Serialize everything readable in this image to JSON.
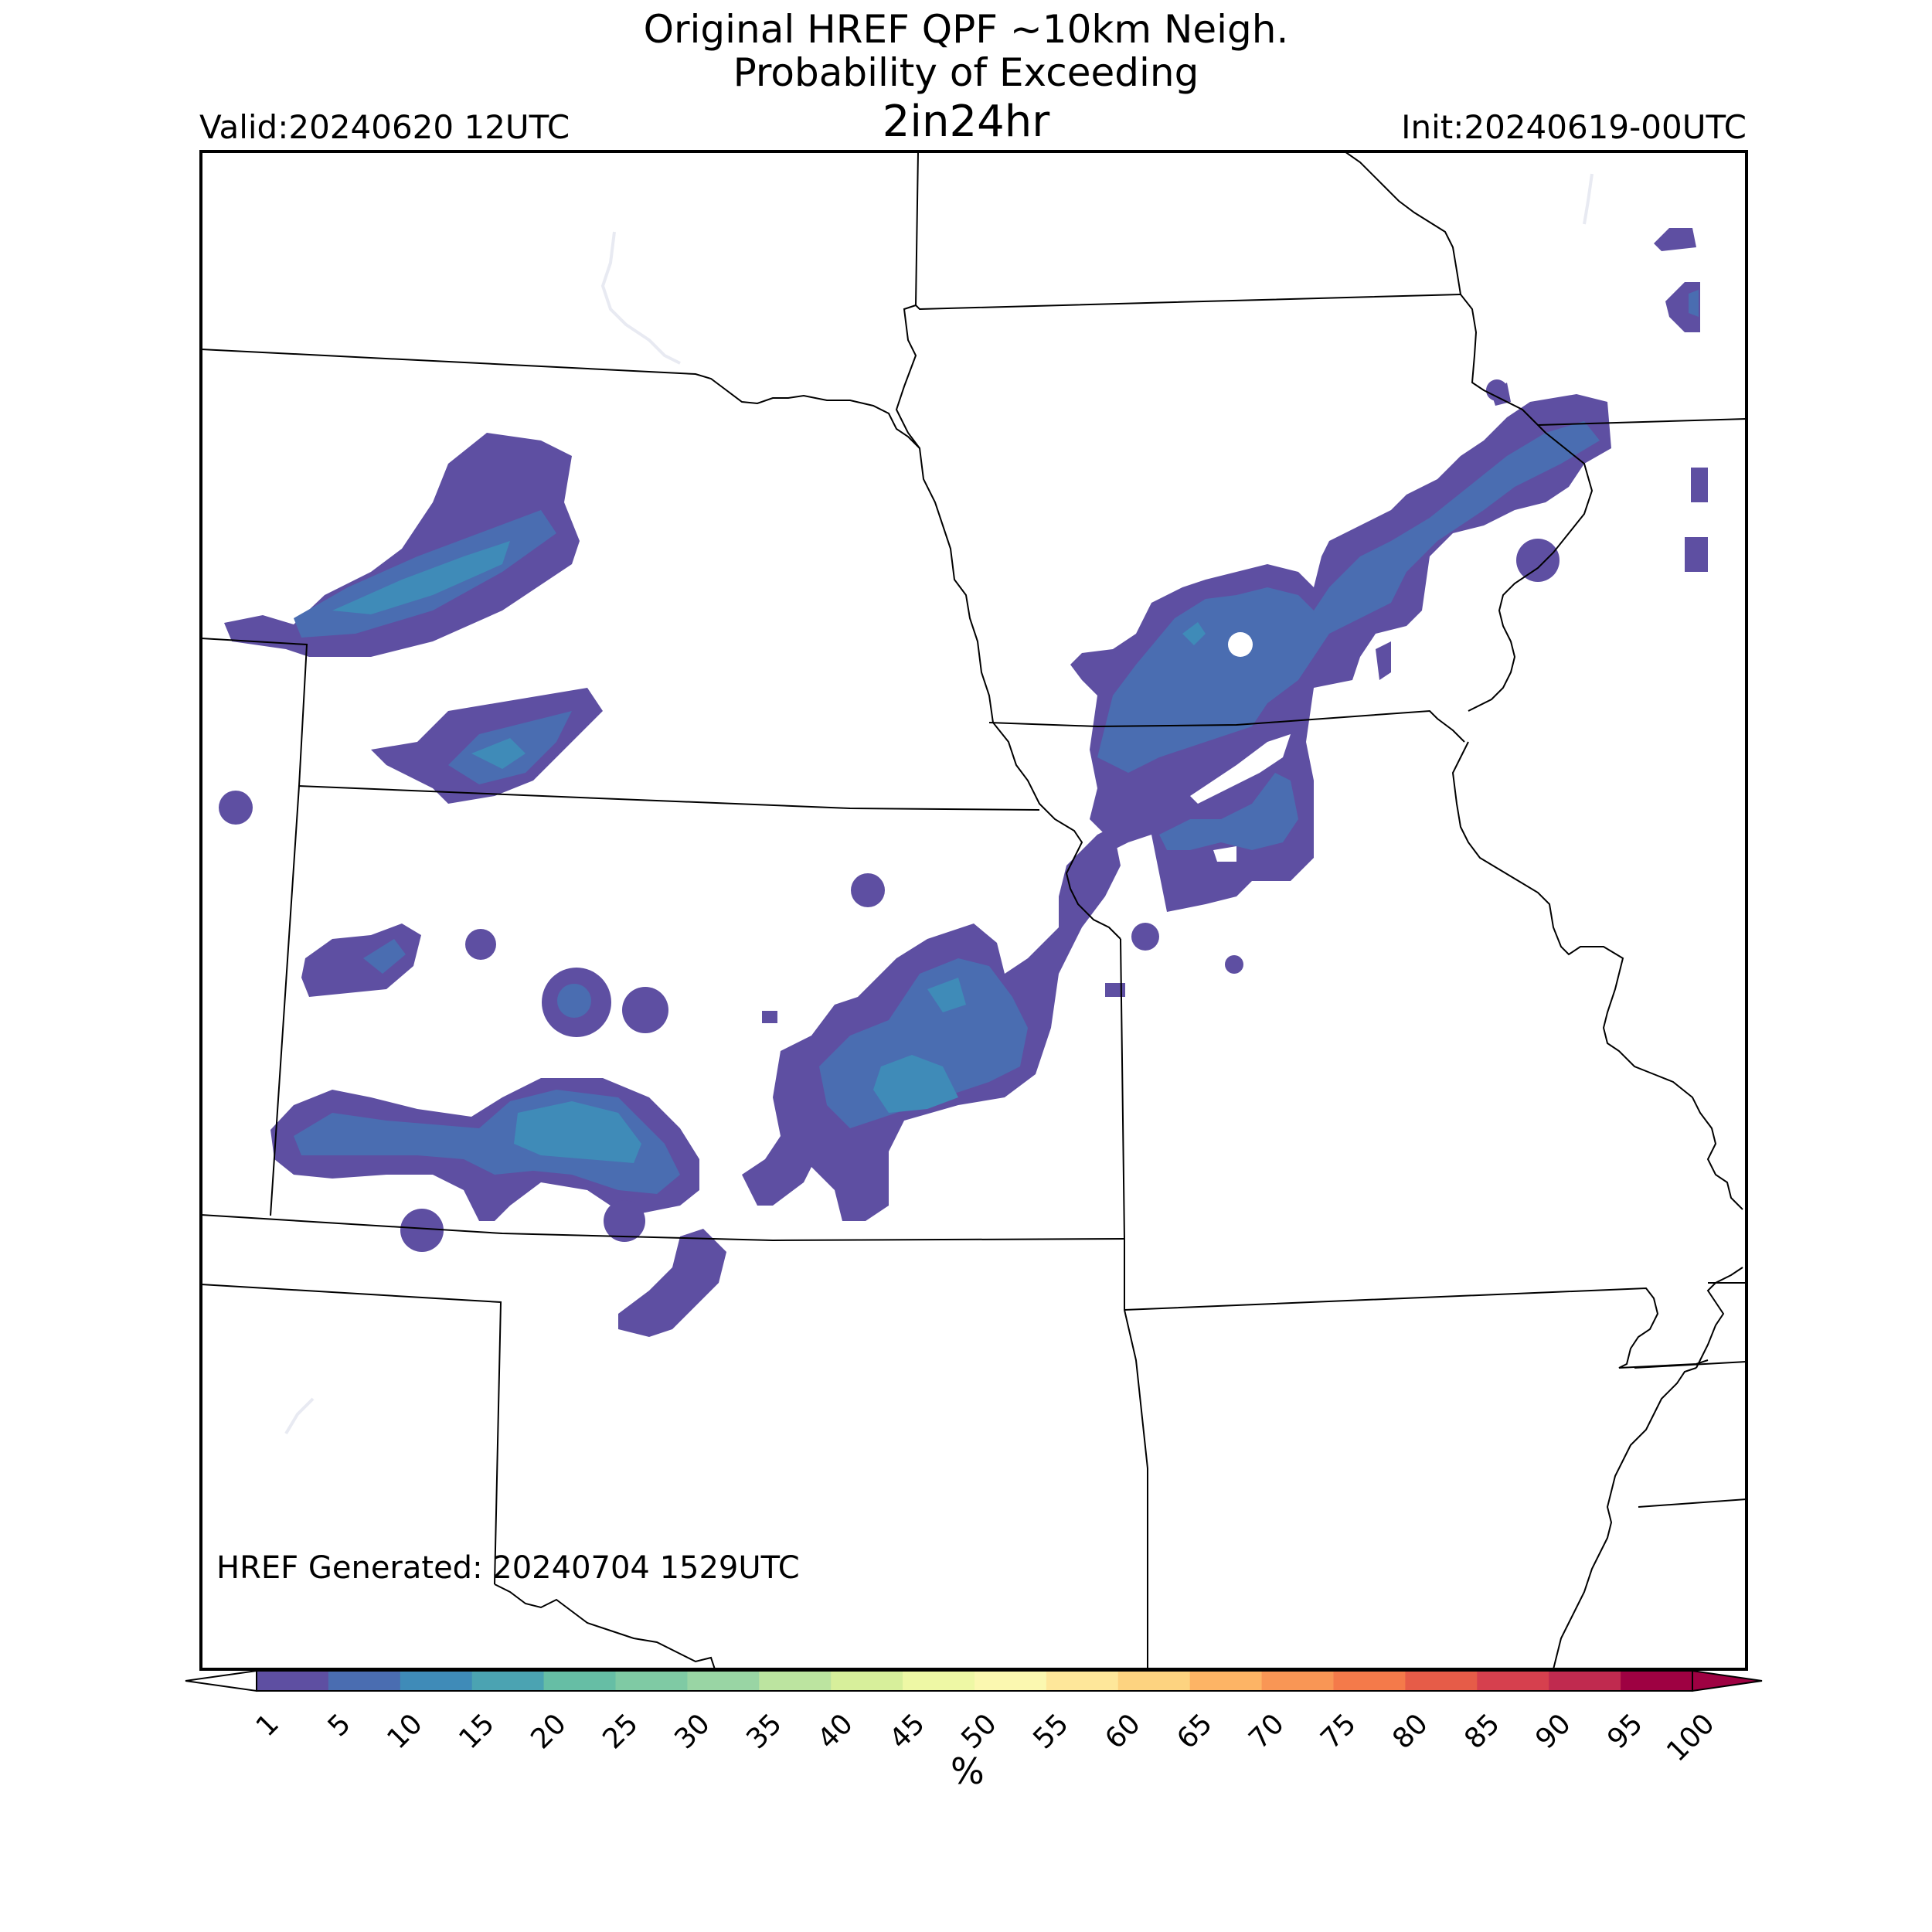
{
  "title": {
    "line1": "Original HREF QPF ~10km Neigh.",
    "line2": "Probability of Exceeding",
    "line3": "2in24hr"
  },
  "valid": "Valid:20240620 12UTC",
  "init": "Init:20240619-00UTC",
  "generated": "HREF Generated: 20240704 1529UTC",
  "colorbar": {
    "unit": "%",
    "ticks": [
      "1",
      "5",
      "10",
      "15",
      "20",
      "25",
      "30",
      "35",
      "40",
      "45",
      "50",
      "55",
      "60",
      "65",
      "70",
      "75",
      "80",
      "85",
      "90",
      "95",
      "100"
    ],
    "colors": [
      "#5e4fa2",
      "#4a6db1",
      "#3f8bb8",
      "#4ba3b2",
      "#66bea5",
      "#7fcaa4",
      "#99d5a4",
      "#bce4a0",
      "#d7ef9b",
      "#eef8a5",
      "#fbf8b0",
      "#fee79a",
      "#fdd380",
      "#fdb465",
      "#f99655",
      "#f47a4a",
      "#e65c48",
      "#d6404e",
      "#c02a4f",
      "#9e0142"
    ],
    "extend": "both"
  },
  "legend_colors": {
    "p1": "#5e4fa2",
    "p5": "#4a6db1",
    "p10": "#3f8bb8",
    "p15": "#4ba3b2"
  }
}
